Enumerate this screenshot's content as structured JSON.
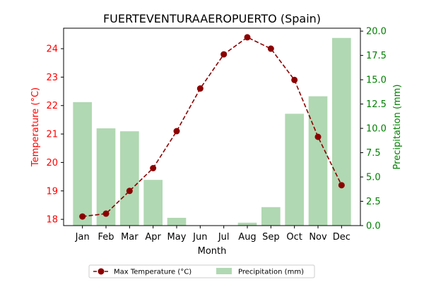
{
  "chart_data": {
    "type": "bar",
    "title": "FUERTEVENTURAAEROPUERTO (Spain)",
    "xlabel": "Month",
    "ylabel_left": "Temperature (°C)",
    "ylabel_right": "Precipitation (mm)",
    "categories": [
      "Jan",
      "Feb",
      "Mar",
      "Apr",
      "May",
      "Jun",
      "Jul",
      "Aug",
      "Sep",
      "Oct",
      "Nov",
      "Dec"
    ],
    "series": [
      {
        "name": "Max Temperature (°C)",
        "type": "line",
        "axis": "left",
        "color": "#8b0000",
        "values": [
          18.1,
          18.2,
          19.0,
          19.8,
          21.1,
          22.6,
          23.8,
          24.4,
          24.0,
          22.9,
          20.9,
          19.2
        ]
      },
      {
        "name": "Precipitation (mm)",
        "type": "bar",
        "axis": "right",
        "color": "#b0d8b2",
        "values": [
          12.7,
          10.0,
          9.7,
          4.7,
          0.8,
          0.0,
          0.0,
          0.3,
          1.9,
          11.5,
          13.3,
          19.3
        ]
      }
    ],
    "ylim_left": [
      17.78,
      24.72
    ],
    "yticks_left": [
      "18",
      "19",
      "20",
      "21",
      "22",
      "23",
      "24"
    ],
    "ylim_right": [
      0,
      20.3
    ],
    "yticks_right": [
      "0.0",
      "2.5",
      "5.0",
      "7.5",
      "10.0",
      "12.5",
      "15.0",
      "17.5",
      "20.0"
    ],
    "left_axis_color": "#ff0000",
    "right_axis_color": "#008000",
    "legend_position": "bottom-center",
    "grid": false
  }
}
